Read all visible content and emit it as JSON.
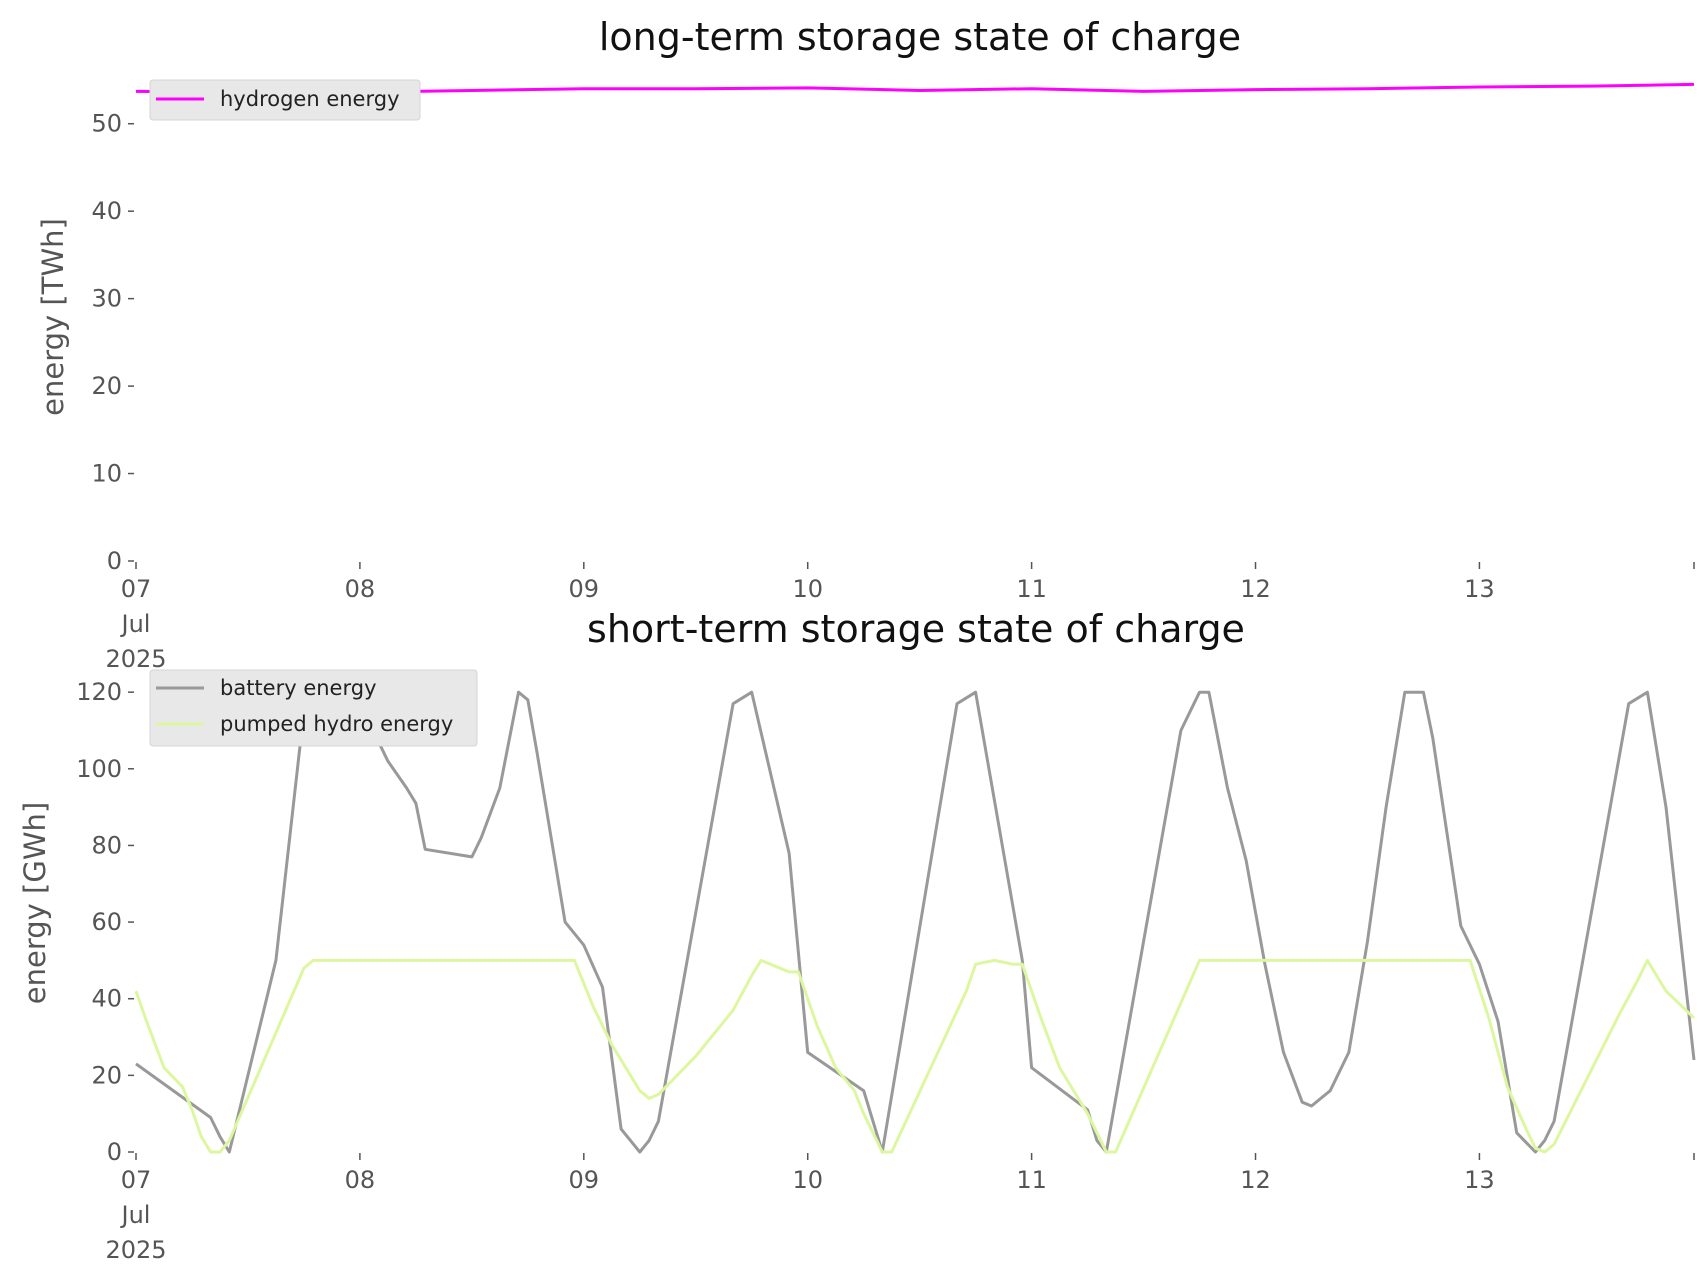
{
  "chart_data": [
    {
      "type": "line",
      "title": "long-term storage state of charge",
      "xlabel": "",
      "ylabel": "energy [TWh]",
      "xlim": [
        "2025-07-07 00:00",
        "2025-07-13 23:00"
      ],
      "ylim": [
        0,
        55
      ],
      "yticks": [
        0,
        10,
        20,
        30,
        40,
        50
      ],
      "xtick_labels": [
        {
          "date": "2025-07-07",
          "lines": [
            "07",
            "Jul",
            "2025"
          ]
        },
        {
          "date": "2025-07-08",
          "lines": [
            "08"
          ]
        },
        {
          "date": "2025-07-09",
          "lines": [
            "09"
          ]
        },
        {
          "date": "2025-07-10",
          "lines": [
            "10"
          ]
        },
        {
          "date": "2025-07-11",
          "lines": [
            "11"
          ]
        },
        {
          "date": "2025-07-12",
          "lines": [
            "12"
          ]
        },
        {
          "date": "2025-07-13",
          "lines": [
            "13"
          ]
        }
      ],
      "grid": false,
      "legend": "top-left",
      "series": [
        {
          "name": "hydrogen energy",
          "color": "#ff00ff",
          "x": [
            "2025-07-07 00:00",
            "2025-07-07 12:00",
            "2025-07-08 00:00",
            "2025-07-08 12:00",
            "2025-07-09 00:00",
            "2025-07-09 12:00",
            "2025-07-10 00:00",
            "2025-07-10 12:00",
            "2025-07-11 00:00",
            "2025-07-11 12:00",
            "2025-07-12 00:00",
            "2025-07-12 12:00",
            "2025-07-13 00:00",
            "2025-07-13 12:00",
            "2025-07-13 23:00"
          ],
          "y": [
            53.7,
            53.6,
            53.6,
            53.8,
            54.0,
            54.0,
            54.1,
            53.8,
            54.0,
            53.7,
            53.9,
            54.0,
            54.2,
            54.3,
            54.5
          ]
        }
      ]
    },
    {
      "type": "line",
      "title": "short-term storage state of charge",
      "xlabel": "",
      "ylabel": "energy [GWh]",
      "xlim": [
        "2025-07-07 00:00",
        "2025-07-13 23:00"
      ],
      "ylim": [
        0,
        125
      ],
      "yticks": [
        0,
        20,
        40,
        60,
        80,
        100,
        120
      ],
      "xtick_labels": [
        {
          "date": "2025-07-07",
          "lines": [
            "07",
            "Jul",
            "2025"
          ]
        },
        {
          "date": "2025-07-08",
          "lines": [
            "08"
          ]
        },
        {
          "date": "2025-07-09",
          "lines": [
            "09"
          ]
        },
        {
          "date": "2025-07-10",
          "lines": [
            "10"
          ]
        },
        {
          "date": "2025-07-11",
          "lines": [
            "11"
          ]
        },
        {
          "date": "2025-07-12",
          "lines": [
            "12"
          ]
        },
        {
          "date": "2025-07-13",
          "lines": [
            "13"
          ]
        }
      ],
      "grid": false,
      "legend": "top-left",
      "series": [
        {
          "name": "battery energy",
          "color": "#999999",
          "x": [
            "2025-07-07 00:00",
            "2025-07-07 08:00",
            "2025-07-07 09:00",
            "2025-07-07 10:00",
            "2025-07-07 15:00",
            "2025-07-07 18:00",
            "2025-07-07 20:00",
            "2025-07-07 21:00",
            "2025-07-07 23:00",
            "2025-07-08 01:00",
            "2025-07-08 03:00",
            "2025-07-08 05:00",
            "2025-07-08 06:00",
            "2025-07-08 07:00",
            "2025-07-08 12:00",
            "2025-07-08 13:00",
            "2025-07-08 15:00",
            "2025-07-08 17:00",
            "2025-07-08 18:00",
            "2025-07-08 19:00",
            "2025-07-08 22:00",
            "2025-07-09 00:00",
            "2025-07-09 02:00",
            "2025-07-09 04:00",
            "2025-07-09 06:00",
            "2025-07-09 07:00",
            "2025-07-09 08:00",
            "2025-07-09 16:00",
            "2025-07-09 18:00",
            "2025-07-09 22:00",
            "2025-07-10 00:00",
            "2025-07-10 06:00",
            "2025-07-10 07:00",
            "2025-07-10 08:00",
            "2025-07-10 16:00",
            "2025-07-10 18:00",
            "2025-07-10 23:00",
            "2025-07-11 00:00",
            "2025-07-11 06:00",
            "2025-07-11 07:00",
            "2025-07-11 08:00",
            "2025-07-11 16:00",
            "2025-07-11 18:00",
            "2025-07-11 19:00",
            "2025-07-11 21:00",
            "2025-07-11 23:00",
            "2025-07-12 01:00",
            "2025-07-12 03:00",
            "2025-07-12 05:00",
            "2025-07-12 06:00",
            "2025-07-12 08:00",
            "2025-07-12 10:00",
            "2025-07-12 12:00",
            "2025-07-12 14:00",
            "2025-07-12 16:00",
            "2025-07-12 18:00",
            "2025-07-12 19:00",
            "2025-07-12 22:00",
            "2025-07-13 00:00",
            "2025-07-13 02:00",
            "2025-07-13 04:00",
            "2025-07-13 06:00",
            "2025-07-13 07:00",
            "2025-07-13 08:00",
            "2025-07-13 16:00",
            "2025-07-13 18:00",
            "2025-07-13 20:00",
            "2025-07-13 23:00"
          ],
          "y": [
            23,
            9,
            4,
            0,
            50,
            115,
            120,
            118,
            110,
            112,
            102,
            95,
            91,
            79,
            77,
            82,
            95,
            120,
            118,
            104,
            60,
            54,
            43,
            6,
            0,
            3,
            8,
            117,
            120,
            78,
            26,
            16,
            8,
            0,
            117,
            120,
            50,
            22,
            11,
            3,
            0,
            110,
            120,
            120,
            95,
            76,
            49,
            26,
            13,
            12,
            16,
            26,
            55,
            90,
            120,
            120,
            108,
            59,
            49,
            34,
            5,
            0,
            3,
            8,
            117,
            120,
            90,
            24
          ]
        },
        {
          "name": "pumped hydro energy",
          "color": "#ddf7a0",
          "x": [
            "2025-07-07 00:00",
            "2025-07-07 01:00",
            "2025-07-07 03:00",
            "2025-07-07 05:00",
            "2025-07-07 06:00",
            "2025-07-07 07:00",
            "2025-07-07 08:00",
            "2025-07-07 09:00",
            "2025-07-07 10:00",
            "2025-07-07 18:00",
            "2025-07-07 19:00",
            "2025-07-07 20:00",
            "2025-07-08 00:00",
            "2025-07-08 12:00",
            "2025-07-08 18:00",
            "2025-07-08 23:00",
            "2025-07-09 01:00",
            "2025-07-09 03:00",
            "2025-07-09 06:00",
            "2025-07-09 07:00",
            "2025-07-09 08:00",
            "2025-07-09 12:00",
            "2025-07-09 16:00",
            "2025-07-09 18:00",
            "2025-07-09 19:00",
            "2025-07-09 22:00",
            "2025-07-09 23:00",
            "2025-07-10 01:00",
            "2025-07-10 03:00",
            "2025-07-10 05:00",
            "2025-07-10 06:00",
            "2025-07-10 08:00",
            "2025-07-10 09:00",
            "2025-07-10 17:00",
            "2025-07-10 18:00",
            "2025-07-10 20:00",
            "2025-07-10 22:00",
            "2025-07-10 23:00",
            "2025-07-11 01:00",
            "2025-07-11 03:00",
            "2025-07-11 05:00",
            "2025-07-11 06:00",
            "2025-07-11 08:00",
            "2025-07-11 09:00",
            "2025-07-11 18:00",
            "2025-07-12 00:00",
            "2025-07-12 12:00",
            "2025-07-12 23:00",
            "2025-07-13 01:00",
            "2025-07-13 03:00",
            "2025-07-13 05:00",
            "2025-07-13 06:00",
            "2025-07-13 07:00",
            "2025-07-13 08:00",
            "2025-07-13 15:00",
            "2025-07-13 17:00",
            "2025-07-13 18:00",
            "2025-07-13 20:00",
            "2025-07-13 23:00"
          ],
          "y": [
            42,
            35,
            22,
            17,
            11,
            4,
            0,
            0,
            3,
            48,
            50,
            50,
            50,
            50,
            50,
            50,
            38,
            28,
            16,
            14,
            15,
            25,
            37,
            46,
            50,
            47,
            47,
            33,
            22,
            16,
            10,
            0,
            0,
            42,
            49,
            50,
            49,
            49,
            35,
            22,
            14,
            10,
            0,
            0,
            50,
            50,
            50,
            50,
            35,
            17,
            6,
            1,
            0,
            2,
            36,
            45,
            50,
            42,
            35
          ]
        }
      ]
    }
  ]
}
